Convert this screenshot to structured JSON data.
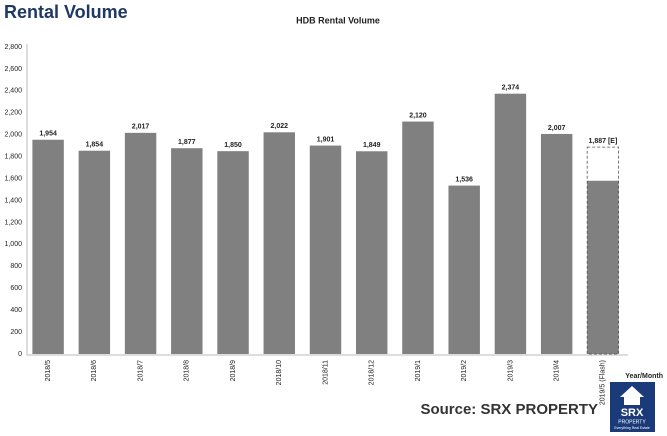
{
  "header": "Rental Volume",
  "chart_data": {
    "type": "bar",
    "title": "HDB Rental Volume",
    "x_label": "Year/Month",
    "categories": [
      "2018/5",
      "2018/6",
      "2018/7",
      "2018/8",
      "2018/9",
      "2018/10",
      "2018/11",
      "2018/12",
      "2019/1",
      "2019/2",
      "2019/3",
      "2019/4",
      "2019/5 (Flash)"
    ],
    "series": [
      {
        "color": "#808080",
        "values": [
          1954,
          1854,
          2017,
          1877,
          1850,
          2022,
          1901,
          1849,
          2120,
          1536,
          2374,
          2007,
          1580
        ],
        "value_labels": [
          "1,954",
          "1,854",
          "2,017",
          "1,877",
          "1,850",
          "2,022",
          "1,901",
          "1,849",
          "2,120",
          "1,536",
          "2,374",
          "2,007",
          null
        ]
      },
      {
        "style": "dashed",
        "values": [
          null,
          null,
          null,
          null,
          null,
          null,
          null,
          null,
          null,
          null,
          null,
          null,
          1887
        ],
        "value_labels": [
          null,
          null,
          null,
          null,
          null,
          null,
          null,
          null,
          null,
          null,
          null,
          null,
          "1,887 [E]"
        ]
      }
    ],
    "ylim": [
      0,
      2800
    ],
    "yticks": [
      0,
      200,
      400,
      600,
      800,
      {
        "value": 1000,
        "label": "1,000"
      },
      {
        "value": 1200,
        "label": "1,200"
      },
      {
        "value": 1400,
        "label": "1,400"
      },
      {
        "value": 1600,
        "label": "1,600"
      },
      {
        "value": 1800,
        "label": "1,800"
      },
      {
        "value": 2000,
        "label": "2,000"
      },
      {
        "value": 2200,
        "label": "2,200"
      },
      {
        "value": 2400,
        "label": "2,400"
      },
      {
        "value": 2600,
        "label": "2,600"
      },
      {
        "value": 2800,
        "label": "2,800"
      }
    ],
    "grid": false
  },
  "footer": {
    "source": "Source:  SRX PROPERTY",
    "logo": {
      "brand": "SRX",
      "sub": "PROPERTY",
      "tagline": "Everything Real Estate"
    }
  }
}
